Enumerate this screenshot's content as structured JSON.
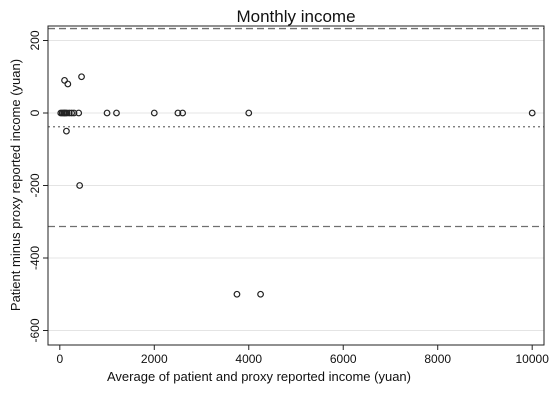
{
  "chart_data": {
    "type": "scatter",
    "title": "Monthly income",
    "xlabel": "Average of patient and proxy reported income (yuan)",
    "ylabel": "Patient minus proxy reported income (yuan)",
    "xlim": [
      -250,
      10250
    ],
    "ylim": [
      -640,
      240
    ],
    "x_ticks": [
      0,
      2000,
      4000,
      6000,
      8000,
      10000
    ],
    "y_ticks": [
      200,
      0,
      -200,
      -400,
      -600
    ],
    "grid": true,
    "marker": "hollow-circle",
    "reference_lines": [
      {
        "y": 233,
        "style": "dashed",
        "meaning": "upper limit of agreement"
      },
      {
        "y": -38,
        "style": "dotted",
        "meaning": "mean difference"
      },
      {
        "y": -313,
        "style": "dashed",
        "meaning": "lower limit of agreement"
      }
    ],
    "points": [
      {
        "x": 20,
        "y": 0
      },
      {
        "x": 50,
        "y": 0
      },
      {
        "x": 80,
        "y": 0
      },
      {
        "x": 100,
        "y": 0
      },
      {
        "x": 120,
        "y": 0
      },
      {
        "x": 150,
        "y": 0
      },
      {
        "x": 200,
        "y": 0
      },
      {
        "x": 250,
        "y": 0
      },
      {
        "x": 300,
        "y": 0
      },
      {
        "x": 400,
        "y": 0
      },
      {
        "x": 100,
        "y": 90
      },
      {
        "x": 170,
        "y": 80
      },
      {
        "x": 460,
        "y": 100
      },
      {
        "x": 140,
        "y": -50
      },
      {
        "x": 420,
        "y": -200
      },
      {
        "x": 1000,
        "y": 0
      },
      {
        "x": 1200,
        "y": 0
      },
      {
        "x": 2000,
        "y": 0
      },
      {
        "x": 2500,
        "y": 0
      },
      {
        "x": 2600,
        "y": 0
      },
      {
        "x": 4000,
        "y": 0
      },
      {
        "x": 10000,
        "y": 0
      },
      {
        "x": 3750,
        "y": -500
      },
      {
        "x": 4250,
        "y": -500
      }
    ]
  }
}
